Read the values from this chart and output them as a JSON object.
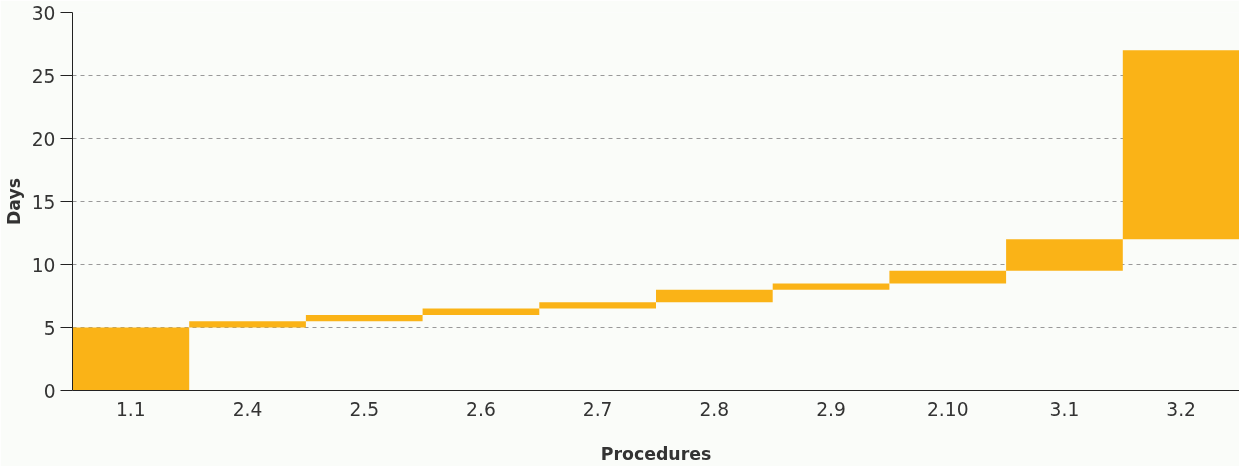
{
  "chart_data": {
    "type": "bar",
    "xlabel": "Procedures",
    "ylabel": "Days",
    "categories": [
      "1.1",
      "2.4",
      "2.5",
      "2.6",
      "2.7",
      "2.8",
      "2.9",
      "2.10",
      "3.1",
      "3.2"
    ],
    "base": [
      0,
      5,
      5.5,
      6,
      6.5,
      7,
      8,
      8.5,
      9.5,
      12
    ],
    "values": [
      5,
      0.5,
      0.5,
      0.5,
      0.5,
      1,
      0.5,
      1,
      2.5,
      15
    ],
    "color": "#fab317",
    "ylim": [
      0,
      30
    ],
    "yticks": [
      0,
      5,
      10,
      15,
      20,
      25,
      30
    ],
    "grid": "y"
  }
}
